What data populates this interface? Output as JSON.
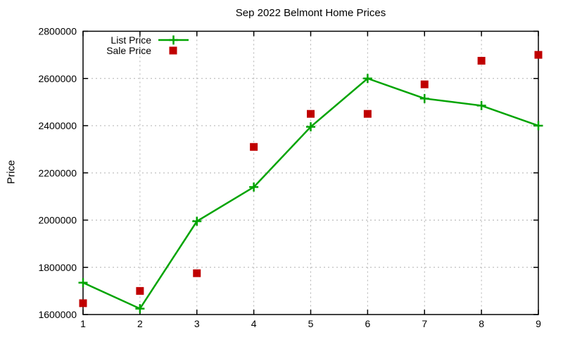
{
  "chart_data": {
    "type": "line",
    "title": "Sep 2022 Belmont Home Prices",
    "xlabel": "",
    "ylabel": "Price",
    "x": [
      1,
      2,
      3,
      4,
      5,
      6,
      7,
      8,
      9
    ],
    "xlim": [
      1,
      9
    ],
    "ylim": [
      1600000,
      2800000
    ],
    "xticks": [
      1,
      2,
      3,
      4,
      5,
      6,
      7,
      8,
      9
    ],
    "yticks": [
      1600000,
      1800000,
      2000000,
      2200000,
      2400000,
      2600000,
      2800000
    ],
    "grid": true,
    "legend_position": "top-left-inside",
    "series": [
      {
        "name": "List Price",
        "type": "line",
        "marker": "plus",
        "color": "#00a400",
        "values": [
          1735000,
          1625000,
          1995000,
          2140000,
          2395000,
          2600000,
          2515000,
          2485000,
          2400000
        ]
      },
      {
        "name": "Sale Price",
        "type": "scatter",
        "marker": "square",
        "color": "#c00000",
        "values": [
          1648000,
          1700000,
          1775000,
          2310000,
          2450000,
          2450000,
          2575000,
          2675000,
          2700000
        ]
      }
    ],
    "colors": {
      "background": "#ffffff",
      "axis": "#000000",
      "grid": "#b0b0b0",
      "list_price": "#00a400",
      "sale_price": "#c00000"
    }
  }
}
